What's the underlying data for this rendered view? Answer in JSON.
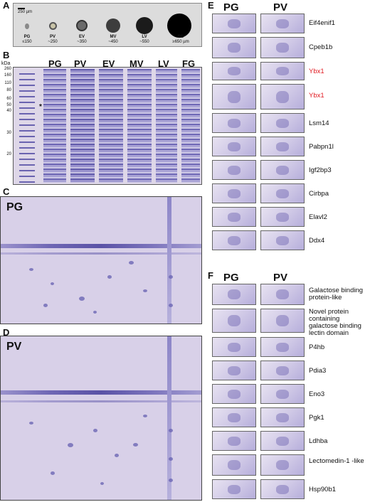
{
  "panels": {
    "A": "A",
    "B": "B",
    "C": "C",
    "D": "D",
    "E": "E",
    "F": "F"
  },
  "panelA": {
    "scale": "250 µm",
    "stages": [
      {
        "name": "PG",
        "size": "≤150"
      },
      {
        "name": "PV",
        "size": "~250"
      },
      {
        "name": "EV",
        "size": "~350"
      },
      {
        "name": "MV",
        "size": "~450"
      },
      {
        "name": "LV",
        "size": "~550"
      },
      {
        "name": "FG",
        "size": "≥650 µm"
      }
    ]
  },
  "panelB": {
    "unit": "kDa",
    "ticks": [
      "260",
      "160",
      "110",
      "80",
      "60",
      "50",
      "40",
      "30",
      "20"
    ],
    "lanes": [
      "PG",
      "PV",
      "EV",
      "MV",
      "LV",
      "FG"
    ],
    "asterisk": "*"
  },
  "panelC": {
    "title": "PG"
  },
  "panelD": {
    "title": "PV"
  },
  "panelE": {
    "cols": [
      "PG",
      "PV"
    ],
    "rows": [
      {
        "label": "Eif4enif1",
        "red": false
      },
      {
        "label": "Cpeb1b",
        "red": false
      },
      {
        "label": "Ybx1",
        "red": true
      },
      {
        "label": "Ybx1",
        "red": true
      },
      {
        "label": "Lsm14",
        "red": false
      },
      {
        "label": "Pabpn1l",
        "red": false
      },
      {
        "label": "Igf2bp3",
        "red": false
      },
      {
        "label": "Cirbpa",
        "red": false
      },
      {
        "label": "Elavl2",
        "red": false
      },
      {
        "label": "Ddx4",
        "red": false
      }
    ]
  },
  "panelF": {
    "cols": [
      "PG",
      "PV"
    ],
    "rows": [
      {
        "label": "Galactose binding protein-like"
      },
      {
        "label": "Novel protein containing galactose binding lectin domain"
      },
      {
        "label": "P4hb"
      },
      {
        "label": "Pdia3"
      },
      {
        "label": "Eno3"
      },
      {
        "label": "Pgk1"
      },
      {
        "label": "Ldhba"
      },
      {
        "label": "Lectomedin-1 -like"
      },
      {
        "label": "Hsp90b1"
      }
    ]
  }
}
